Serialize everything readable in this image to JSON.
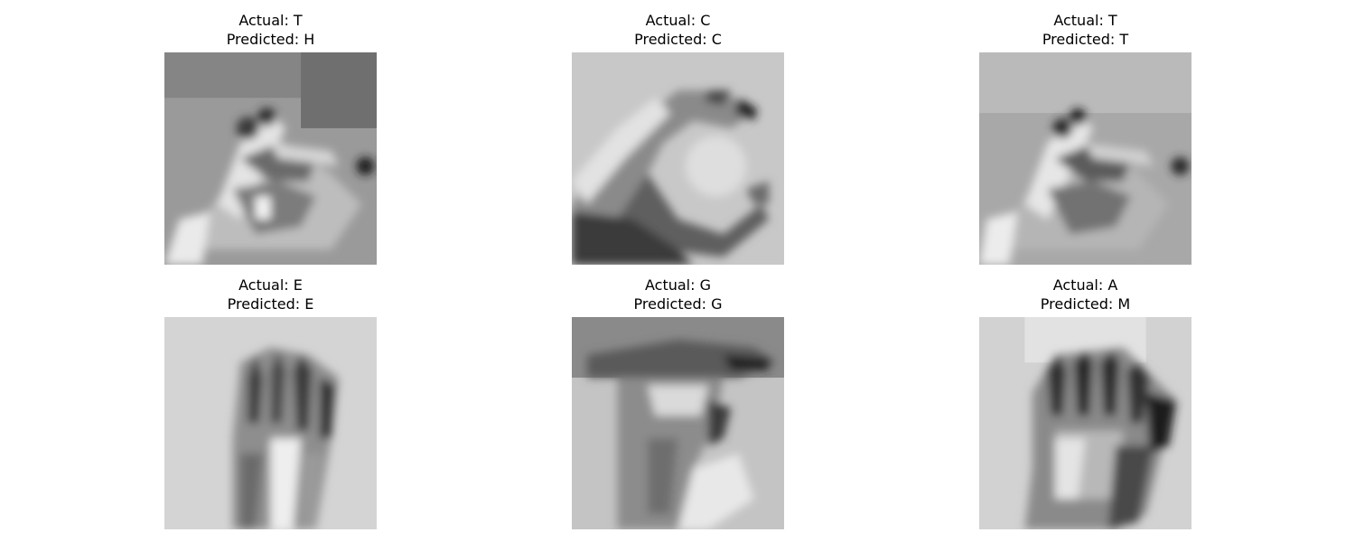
{
  "figure": {
    "panels": [
      {
        "actual_label": "Actual: T",
        "predicted_label": "Predicted: H",
        "actual": "T",
        "predicted": "H",
        "image": "grayscale hand sign, sign language letter T"
      },
      {
        "actual_label": "Actual: C",
        "predicted_label": "Predicted: C",
        "actual": "C",
        "predicted": "C",
        "image": "grayscale hand sign, sign language letter C"
      },
      {
        "actual_label": "Actual: T",
        "predicted_label": "Predicted: T",
        "actual": "T",
        "predicted": "T",
        "image": "grayscale hand sign, sign language letter T"
      },
      {
        "actual_label": "Actual: E",
        "predicted_label": "Predicted: E",
        "actual": "E",
        "predicted": "E",
        "image": "grayscale hand sign, sign language letter E"
      },
      {
        "actual_label": "Actual: G",
        "predicted_label": "Predicted: G",
        "actual": "G",
        "predicted": "G",
        "image": "grayscale hand sign, sign language letter G"
      },
      {
        "actual_label": "Actual: A",
        "predicted_label": "Predicted: M",
        "actual": "A",
        "predicted": "M",
        "image": "grayscale hand sign, sign language letter A"
      }
    ]
  }
}
